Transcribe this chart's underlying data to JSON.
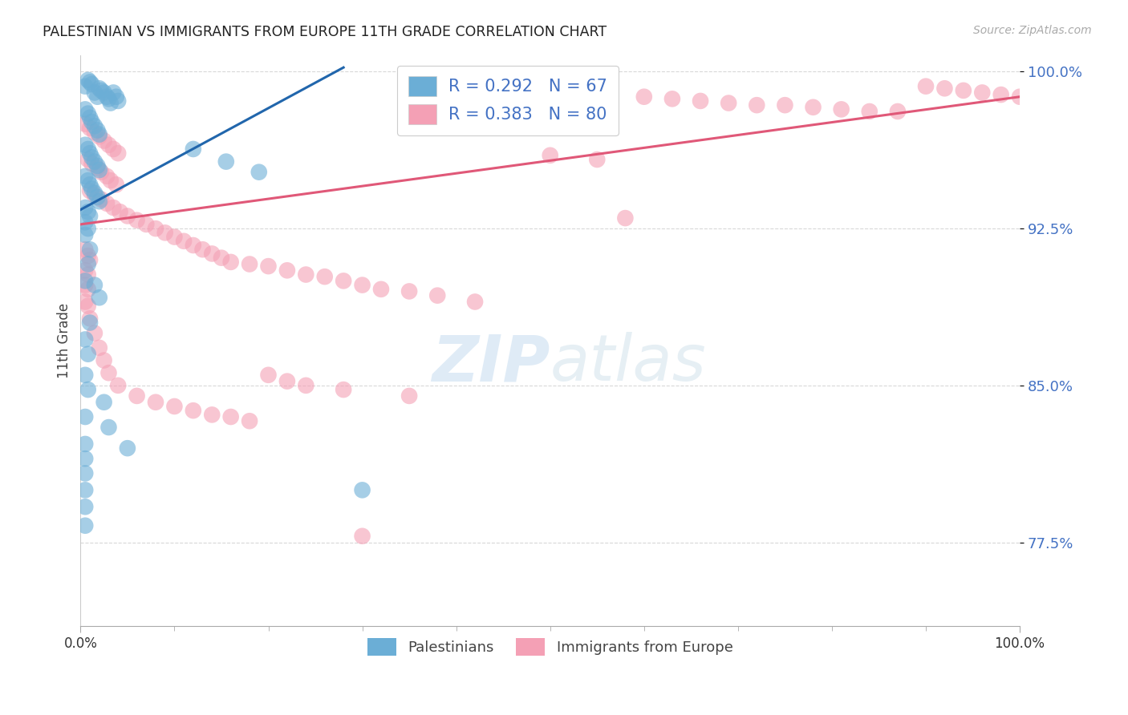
{
  "title": "PALESTINIAN VS IMMIGRANTS FROM EUROPE 11TH GRADE CORRELATION CHART",
  "source": "Source: ZipAtlas.com",
  "ylabel": "11th Grade",
  "xlim": [
    0.0,
    1.0
  ],
  "ylim": [
    0.735,
    1.008
  ],
  "yticks": [
    0.775,
    0.85,
    0.925,
    1.0
  ],
  "ytick_labels": [
    "77.5%",
    "85.0%",
    "92.5%",
    "100.0%"
  ],
  "blue_color": "#6baed6",
  "pink_color": "#f4a0b5",
  "blue_line_color": "#2166ac",
  "pink_line_color": "#e05878",
  "blue_line_x": [
    0.0,
    0.28
  ],
  "blue_line_y": [
    0.934,
    1.002
  ],
  "pink_line_x": [
    0.0,
    1.0
  ],
  "pink_line_y": [
    0.927,
    0.988
  ],
  "background_color": "#ffffff",
  "grid_color": "#d8d8d8",
  "blue_points": [
    [
      0.005,
      0.993
    ],
    [
      0.008,
      0.996
    ],
    [
      0.01,
      0.995
    ],
    [
      0.012,
      0.994
    ],
    [
      0.015,
      0.99
    ],
    [
      0.018,
      0.988
    ],
    [
      0.02,
      0.992
    ],
    [
      0.022,
      0.991
    ],
    [
      0.025,
      0.99
    ],
    [
      0.028,
      0.988
    ],
    [
      0.03,
      0.987
    ],
    [
      0.032,
      0.985
    ],
    [
      0.035,
      0.99
    ],
    [
      0.038,
      0.988
    ],
    [
      0.04,
      0.986
    ],
    [
      0.005,
      0.982
    ],
    [
      0.008,
      0.98
    ],
    [
      0.01,
      0.978
    ],
    [
      0.012,
      0.976
    ],
    [
      0.015,
      0.974
    ],
    [
      0.018,
      0.972
    ],
    [
      0.02,
      0.97
    ],
    [
      0.005,
      0.965
    ],
    [
      0.008,
      0.963
    ],
    [
      0.01,
      0.961
    ],
    [
      0.012,
      0.959
    ],
    [
      0.015,
      0.957
    ],
    [
      0.018,
      0.955
    ],
    [
      0.02,
      0.953
    ],
    [
      0.005,
      0.95
    ],
    [
      0.008,
      0.948
    ],
    [
      0.01,
      0.946
    ],
    [
      0.012,
      0.944
    ],
    [
      0.015,
      0.942
    ],
    [
      0.018,
      0.94
    ],
    [
      0.02,
      0.938
    ],
    [
      0.005,
      0.935
    ],
    [
      0.008,
      0.933
    ],
    [
      0.01,
      0.931
    ],
    [
      0.005,
      0.928
    ],
    [
      0.008,
      0.925
    ],
    [
      0.005,
      0.922
    ],
    [
      0.01,
      0.915
    ],
    [
      0.008,
      0.908
    ],
    [
      0.005,
      0.9
    ],
    [
      0.015,
      0.898
    ],
    [
      0.02,
      0.892
    ],
    [
      0.01,
      0.88
    ],
    [
      0.005,
      0.872
    ],
    [
      0.008,
      0.865
    ],
    [
      0.005,
      0.855
    ],
    [
      0.008,
      0.848
    ],
    [
      0.025,
      0.842
    ],
    [
      0.005,
      0.835
    ],
    [
      0.03,
      0.83
    ],
    [
      0.005,
      0.822
    ],
    [
      0.005,
      0.815
    ],
    [
      0.005,
      0.808
    ],
    [
      0.005,
      0.8
    ],
    [
      0.12,
      0.963
    ],
    [
      0.155,
      0.957
    ],
    [
      0.19,
      0.952
    ],
    [
      0.05,
      0.82
    ],
    [
      0.005,
      0.792
    ],
    [
      0.005,
      0.783
    ],
    [
      0.3,
      0.8
    ]
  ],
  "pink_points": [
    [
      0.005,
      0.975
    ],
    [
      0.01,
      0.973
    ],
    [
      0.015,
      0.971
    ],
    [
      0.02,
      0.969
    ],
    [
      0.025,
      0.967
    ],
    [
      0.03,
      0.965
    ],
    [
      0.035,
      0.963
    ],
    [
      0.04,
      0.961
    ],
    [
      0.008,
      0.958
    ],
    [
      0.012,
      0.956
    ],
    [
      0.018,
      0.954
    ],
    [
      0.022,
      0.952
    ],
    [
      0.028,
      0.95
    ],
    [
      0.032,
      0.948
    ],
    [
      0.038,
      0.946
    ],
    [
      0.01,
      0.943
    ],
    [
      0.015,
      0.941
    ],
    [
      0.022,
      0.939
    ],
    [
      0.028,
      0.937
    ],
    [
      0.035,
      0.935
    ],
    [
      0.042,
      0.933
    ],
    [
      0.05,
      0.931
    ],
    [
      0.06,
      0.929
    ],
    [
      0.07,
      0.927
    ],
    [
      0.08,
      0.925
    ],
    [
      0.09,
      0.923
    ],
    [
      0.1,
      0.921
    ],
    [
      0.11,
      0.919
    ],
    [
      0.12,
      0.917
    ],
    [
      0.13,
      0.915
    ],
    [
      0.14,
      0.913
    ],
    [
      0.15,
      0.911
    ],
    [
      0.16,
      0.909
    ],
    [
      0.18,
      0.908
    ],
    [
      0.2,
      0.907
    ],
    [
      0.22,
      0.905
    ],
    [
      0.24,
      0.903
    ],
    [
      0.26,
      0.902
    ],
    [
      0.28,
      0.9
    ],
    [
      0.3,
      0.898
    ],
    [
      0.32,
      0.896
    ],
    [
      0.35,
      0.895
    ],
    [
      0.38,
      0.893
    ],
    [
      0.42,
      0.89
    ],
    [
      0.005,
      0.915
    ],
    [
      0.008,
      0.912
    ],
    [
      0.01,
      0.91
    ],
    [
      0.005,
      0.905
    ],
    [
      0.008,
      0.903
    ],
    [
      0.005,
      0.898
    ],
    [
      0.008,
      0.896
    ],
    [
      0.005,
      0.89
    ],
    [
      0.008,
      0.888
    ],
    [
      0.01,
      0.882
    ],
    [
      0.015,
      0.875
    ],
    [
      0.02,
      0.868
    ],
    [
      0.025,
      0.862
    ],
    [
      0.03,
      0.856
    ],
    [
      0.04,
      0.85
    ],
    [
      0.06,
      0.845
    ],
    [
      0.08,
      0.842
    ],
    [
      0.1,
      0.84
    ],
    [
      0.12,
      0.838
    ],
    [
      0.14,
      0.836
    ],
    [
      0.16,
      0.835
    ],
    [
      0.18,
      0.833
    ],
    [
      0.2,
      0.855
    ],
    [
      0.22,
      0.852
    ],
    [
      0.24,
      0.85
    ],
    [
      0.28,
      0.848
    ],
    [
      0.6,
      0.988
    ],
    [
      0.63,
      0.987
    ],
    [
      0.66,
      0.986
    ],
    [
      0.69,
      0.985
    ],
    [
      0.72,
      0.984
    ],
    [
      0.75,
      0.984
    ],
    [
      0.78,
      0.983
    ],
    [
      0.81,
      0.982
    ],
    [
      0.84,
      0.981
    ],
    [
      0.87,
      0.981
    ],
    [
      0.9,
      0.993
    ],
    [
      0.92,
      0.992
    ],
    [
      0.94,
      0.991
    ],
    [
      0.96,
      0.99
    ],
    [
      0.98,
      0.989
    ],
    [
      1.0,
      0.988
    ],
    [
      0.5,
      0.96
    ],
    [
      0.55,
      0.958
    ],
    [
      0.58,
      0.93
    ],
    [
      0.3,
      0.778
    ],
    [
      0.35,
      0.845
    ]
  ]
}
